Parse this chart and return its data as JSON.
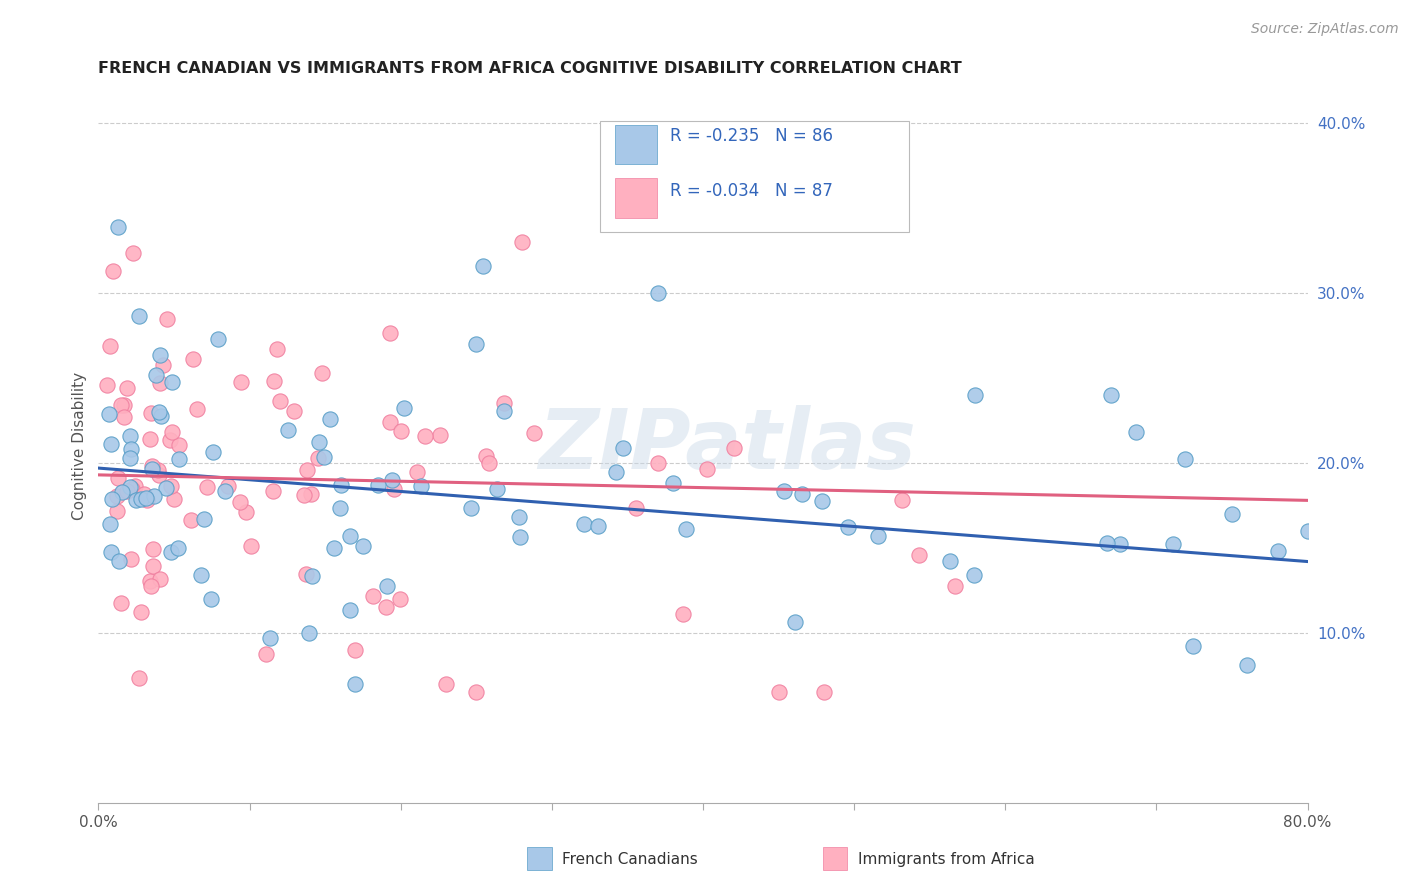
{
  "title": "FRENCH CANADIAN VS IMMIGRANTS FROM AFRICA COGNITIVE DISABILITY CORRELATION CHART",
  "source": "Source: ZipAtlas.com",
  "ylabel": "Cognitive Disability",
  "xlim": [
    0.0,
    0.8
  ],
  "ylim": [
    0.0,
    0.42
  ],
  "yticks_right": [
    0.1,
    0.2,
    0.3,
    0.4
  ],
  "ytick_right_labels": [
    "10.0%",
    "20.0%",
    "30.0%",
    "40.0%"
  ],
  "watermark": "ZIPatlas",
  "legend_label_blue": "French Canadians",
  "legend_label_pink": "Immigrants from Africa",
  "legend_r_blue": "R = -0.235",
  "legend_n_blue": "N = 86",
  "legend_r_pink": "R = -0.034",
  "legend_n_pink": "N = 87",
  "blue_scatter_color": "#a8c8e8",
  "blue_edge_color": "#5a9fc8",
  "pink_scatter_color": "#ffb0c0",
  "pink_edge_color": "#f080a0",
  "trendline_blue_color": "#3060b0",
  "trendline_pink_color": "#e06080",
  "trendline_blue": [
    0.0,
    0.197,
    0.8,
    0.142
  ],
  "trendline_pink": [
    0.0,
    0.193,
    0.8,
    0.178
  ],
  "grid_color": "#cccccc",
  "title_color": "#222222",
  "source_color": "#999999",
  "axis_label_color": "#555555",
  "right_tick_color": "#4472c4",
  "bottom_tick_color": "#555555"
}
